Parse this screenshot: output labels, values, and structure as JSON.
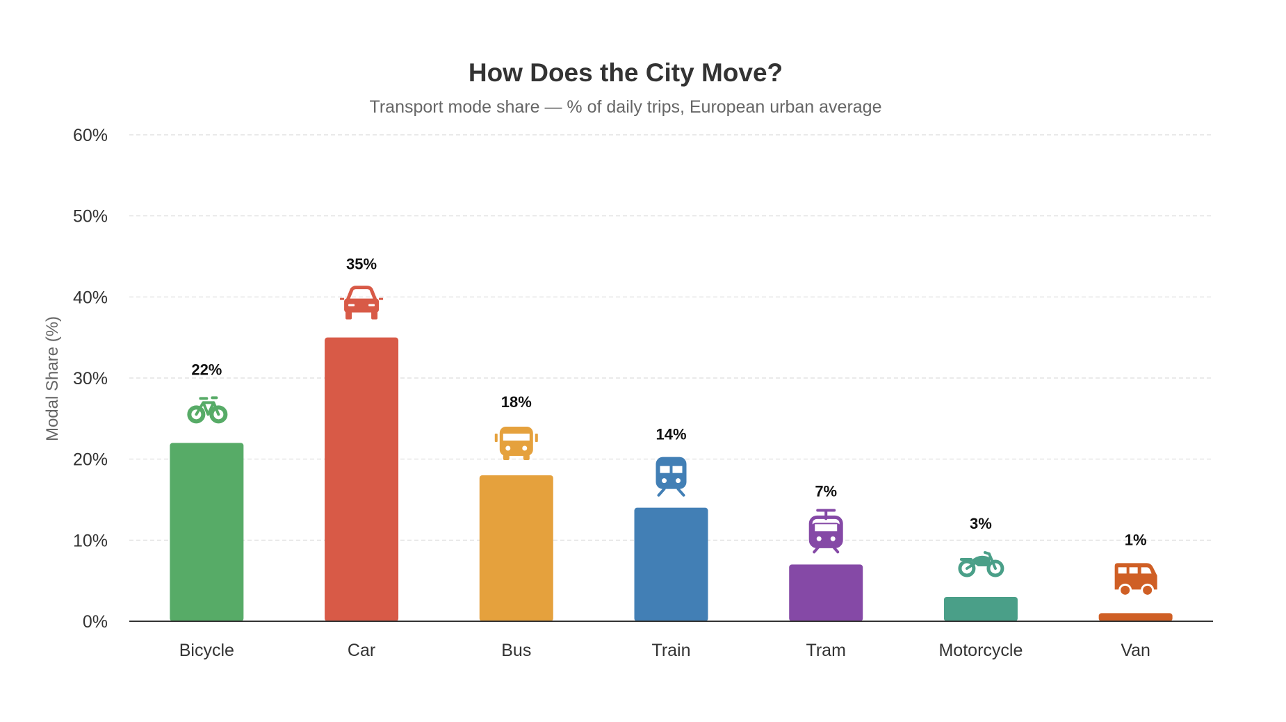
{
  "chart_data": {
    "type": "bar",
    "title": "How Does the City Move?",
    "subtitle": "Transport mode share — % of daily trips, European urban average",
    "xlabel": "",
    "ylabel": "Modal Share (%)",
    "ylim": [
      0,
      60
    ],
    "yticks": [
      0,
      10,
      20,
      30,
      40,
      50,
      60
    ],
    "ytick_labels": [
      "0%",
      "10%",
      "20%",
      "30%",
      "40%",
      "50%",
      "60%"
    ],
    "grid": "horizontal-dashed",
    "legend": "none",
    "categories": [
      "Bicycle",
      "Car",
      "Bus",
      "Train",
      "Tram",
      "Motorcycle",
      "Van"
    ],
    "values": [
      22,
      35,
      18,
      14,
      7,
      3,
      1
    ],
    "data_labels": [
      "22%",
      "35%",
      "18%",
      "14%",
      "7%",
      "3%",
      "1%"
    ],
    "colors": [
      "#57ab67",
      "#d85a47",
      "#e5a13d",
      "#427fb5",
      "#8549a6",
      "#4a9f88",
      "#cf5f25"
    ],
    "icons": [
      "bicycle-icon",
      "car-icon",
      "bus-icon",
      "train-icon",
      "tram-icon",
      "motorcycle-icon",
      "van-icon"
    ]
  }
}
